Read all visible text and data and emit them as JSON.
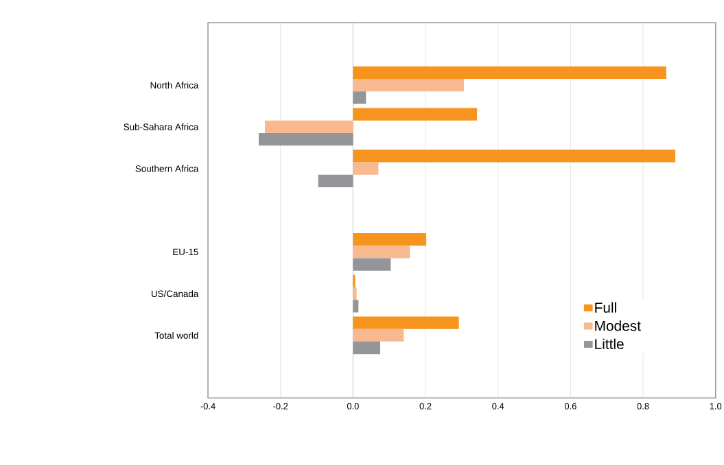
{
  "chart_data": {
    "type": "bar",
    "orientation": "horizontal",
    "categories": [
      null,
      "North Africa",
      "Sub-Sahara Africa",
      "Southern Africa",
      null,
      "EU-15",
      "US/Canada",
      "Total world",
      null
    ],
    "series": [
      {
        "name": "Full",
        "color": "#f7941d",
        "values": [
          null,
          0.864,
          0.342,
          0.889,
          null,
          0.202,
          0.006,
          0.292,
          null
        ]
      },
      {
        "name": "Modest",
        "color": "#f9b990",
        "values": [
          null,
          0.306,
          -0.243,
          0.07,
          null,
          0.157,
          0.01,
          0.14,
          null
        ]
      },
      {
        "name": "Little",
        "color": "#939598",
        "values": [
          null,
          0.036,
          -0.26,
          -0.096,
          null,
          0.104,
          0.015,
          0.075,
          null
        ]
      }
    ],
    "xlim": [
      -0.4,
      1.0
    ],
    "xticks": [
      {
        "value": -0.4,
        "label": "-0.4"
      },
      {
        "value": -0.2,
        "label": "-0.2"
      },
      {
        "value": 0,
        "label": "0.0"
      },
      {
        "value": 0.2,
        "label": "0.2"
      },
      {
        "value": 0.4,
        "label": "0.4"
      },
      {
        "value": 0.6,
        "label": "0.6"
      },
      {
        "value": 0.8,
        "label": "0.8"
      },
      {
        "value": 1.0,
        "label": "1.0"
      }
    ],
    "grid": "x",
    "legend": "bottom right"
  }
}
